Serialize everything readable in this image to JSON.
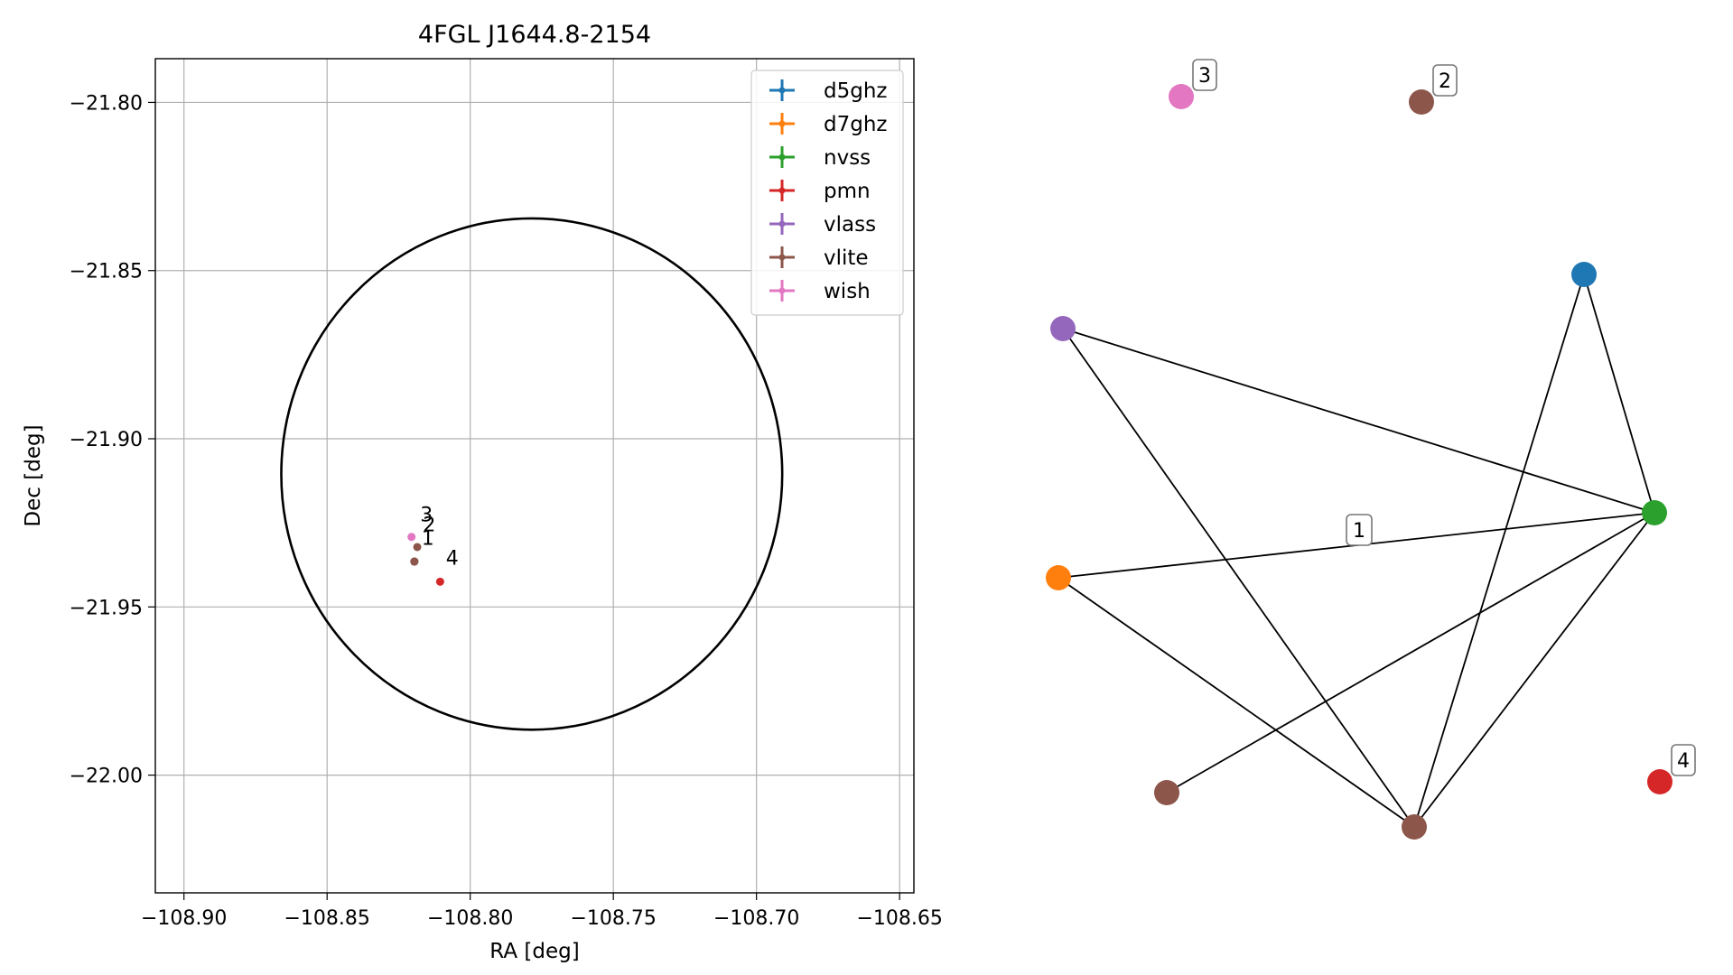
{
  "chart_data": [
    {
      "type": "scatter",
      "title": "4FGL J1644.8-2154",
      "xlabel": "RA [deg]",
      "ylabel": "Dec [deg]",
      "xlim": [
        -108.91,
        -108.645
      ],
      "ylim": [
        -22.035,
        -21.787
      ],
      "xticks": [
        -108.9,
        -108.85,
        -108.8,
        -108.75,
        -108.7,
        -108.65
      ],
      "xtick_labels": [
        "−108.90",
        "−108.85",
        "−108.80",
        "−108.75",
        "−108.70",
        "−108.65"
      ],
      "yticks": [
        -21.8,
        -21.85,
        -21.9,
        -21.95,
        -22.0
      ],
      "ytick_labels": [
        "−21.80",
        "−21.85",
        "−21.90",
        "−21.95",
        "−22.00"
      ],
      "grid": true,
      "legend_placement": "top-right",
      "ellipse": {
        "center": [
          -108.7785,
          -21.9105
        ],
        "semi_axis_ra": 0.0875,
        "semi_axis_dec": 0.076
      },
      "series": [
        {
          "name": "d5ghz",
          "color": "#1f77b4",
          "points": [
            {
              "x": -108.8195,
              "y": -21.9365
            }
          ]
        },
        {
          "name": "d7ghz",
          "color": "#ff7f0e",
          "points": [
            {
              "x": -108.8195,
              "y": -21.9365
            }
          ]
        },
        {
          "name": "nvss",
          "color": "#2ca02c",
          "points": [
            {
              "x": -108.8195,
              "y": -21.9365
            }
          ]
        },
        {
          "name": "pmn",
          "color": "#d62728",
          "points": [
            {
              "x": -108.8105,
              "y": -21.9425
            }
          ]
        },
        {
          "name": "vlass",
          "color": "#9467bd",
          "points": [
            {
              "x": -108.8195,
              "y": -21.9365
            }
          ]
        },
        {
          "name": "vlite",
          "color": "#8c564b",
          "points": [
            {
              "x": -108.8195,
              "y": -21.9365
            },
            {
              "x": -108.8185,
              "y": -21.9322
            }
          ]
        },
        {
          "name": "wish",
          "color": "#e377c2",
          "points": [
            {
              "x": -108.8205,
              "y": -21.9292
            }
          ]
        }
      ],
      "annotations": [
        {
          "text": "3",
          "x": -108.8175,
          "y": -21.9245
        },
        {
          "text": "2",
          "x": -108.8165,
          "y": -21.9275
        },
        {
          "text": "1",
          "x": -108.817,
          "y": -21.9315
        },
        {
          "text": "4",
          "x": -108.8085,
          "y": -21.9375
        }
      ]
    },
    {
      "type": "network",
      "nodes": [
        {
          "id": "wish",
          "color": "#e377c2",
          "label": "3"
        },
        {
          "id": "vlite_a",
          "color": "#8c564b",
          "label": "2"
        },
        {
          "id": "d5ghz",
          "color": "#1f77b4",
          "label": ""
        },
        {
          "id": "vlass",
          "color": "#9467bd",
          "label": ""
        },
        {
          "id": "nvss",
          "color": "#2ca02c",
          "label": ""
        },
        {
          "id": "d7ghz",
          "color": "#ff7f0e",
          "label": ""
        },
        {
          "id": "vlite_b",
          "color": "#8c564b",
          "label": ""
        },
        {
          "id": "vlite_c",
          "color": "#8c564b",
          "label": ""
        },
        {
          "id": "pmn",
          "color": "#d62728",
          "label": "4"
        }
      ],
      "edges": [
        [
          "vlass",
          "nvss"
        ],
        [
          "vlass",
          "vlite_c"
        ],
        [
          "d5ghz",
          "nvss"
        ],
        [
          "d5ghz",
          "vlite_c"
        ],
        [
          "d7ghz",
          "nvss"
        ],
        [
          "d7ghz",
          "vlite_c"
        ],
        [
          "vlite_b",
          "nvss"
        ],
        [
          "nvss",
          "vlite_c"
        ]
      ],
      "edge_label": {
        "text": "1",
        "edge": [
          "d7ghz",
          "nvss"
        ]
      }
    }
  ]
}
